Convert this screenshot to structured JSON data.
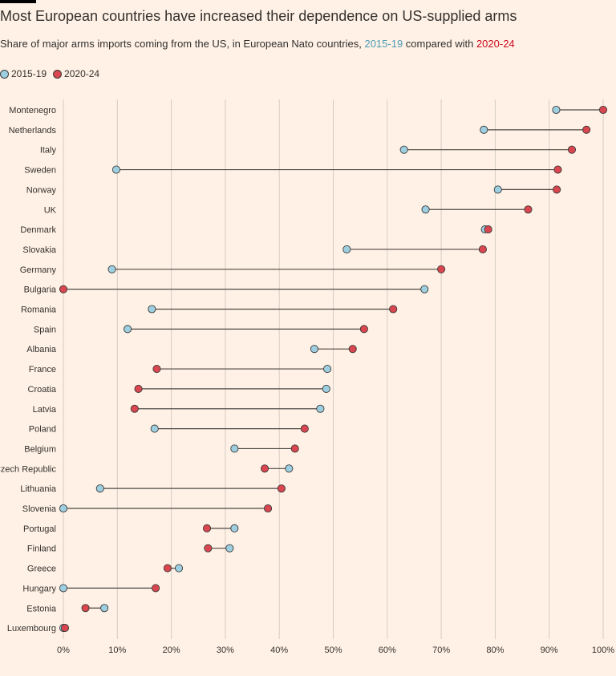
{
  "header": {
    "title": "Most European countries have increased their dependence on US-supplied arms",
    "subtitle_prefix": "Share of major arms imports coming from the US, in European Nato countries, ",
    "subtitle_period1": "2015-19",
    "subtitle_middle": " compared with ",
    "subtitle_period2": "2020-24"
  },
  "legend": {
    "items": [
      {
        "label": "2015-19",
        "color": "#9ECFE0"
      },
      {
        "label": "2020-24",
        "color": "#D9464F"
      }
    ]
  },
  "colors": {
    "background": "#FFF1E5",
    "series_2015_19": "#9ECFE0",
    "series_2020_24": "#D9464F",
    "connector": "#4D4845",
    "gridline": "#D5CCC4",
    "text": "#33302E"
  },
  "chart_data": {
    "type": "dumbbell",
    "title": "Most European countries have increased their dependence on US-supplied arms",
    "xlabel": "",
    "ylabel": "",
    "xlim": [
      0,
      100
    ],
    "x_ticks": [
      "0%",
      "10%",
      "20%",
      "30%",
      "40%",
      "50%",
      "60%",
      "70%",
      "80%",
      "90%",
      "100%"
    ],
    "x_tick_values": [
      0,
      10,
      20,
      30,
      40,
      50,
      60,
      70,
      80,
      90,
      100
    ],
    "grid": true,
    "legend_position": "top-left",
    "categories": [
      "Montenegro",
      "Netherlands",
      "Italy",
      "Sweden",
      "Norway",
      "UK",
      "Denmark",
      "Slovakia",
      "Germany",
      "Bulgaria",
      "Romania",
      "Spain",
      "Albania",
      "France",
      "Croatia",
      "Latvia",
      "Poland",
      "Belgium",
      "Czech Republic",
      "Lithuania",
      "Slovenia",
      "Portugal",
      "Finland",
      "Greece",
      "Hungary",
      "Estonia",
      "Luxembourg"
    ],
    "series": [
      {
        "name": "2015-19",
        "values": [
          91.3,
          77.9,
          63.1,
          9.8,
          80.5,
          67.1,
          78.1,
          52.5,
          9.0,
          66.9,
          16.4,
          11.9,
          46.5,
          48.9,
          48.7,
          47.6,
          16.9,
          31.7,
          41.8,
          6.8,
          0.0,
          31.7,
          30.8,
          21.4,
          0.0,
          7.6,
          0.0
        ]
      },
      {
        "name": "2020-24",
        "values": [
          100.0,
          96.9,
          94.2,
          91.6,
          91.4,
          86.1,
          78.7,
          77.7,
          70.0,
          0.0,
          61.1,
          55.7,
          53.6,
          17.3,
          13.9,
          13.2,
          44.7,
          42.9,
          37.3,
          40.4,
          37.9,
          26.6,
          26.8,
          19.3,
          17.1,
          4.1,
          0.3
        ]
      }
    ]
  }
}
